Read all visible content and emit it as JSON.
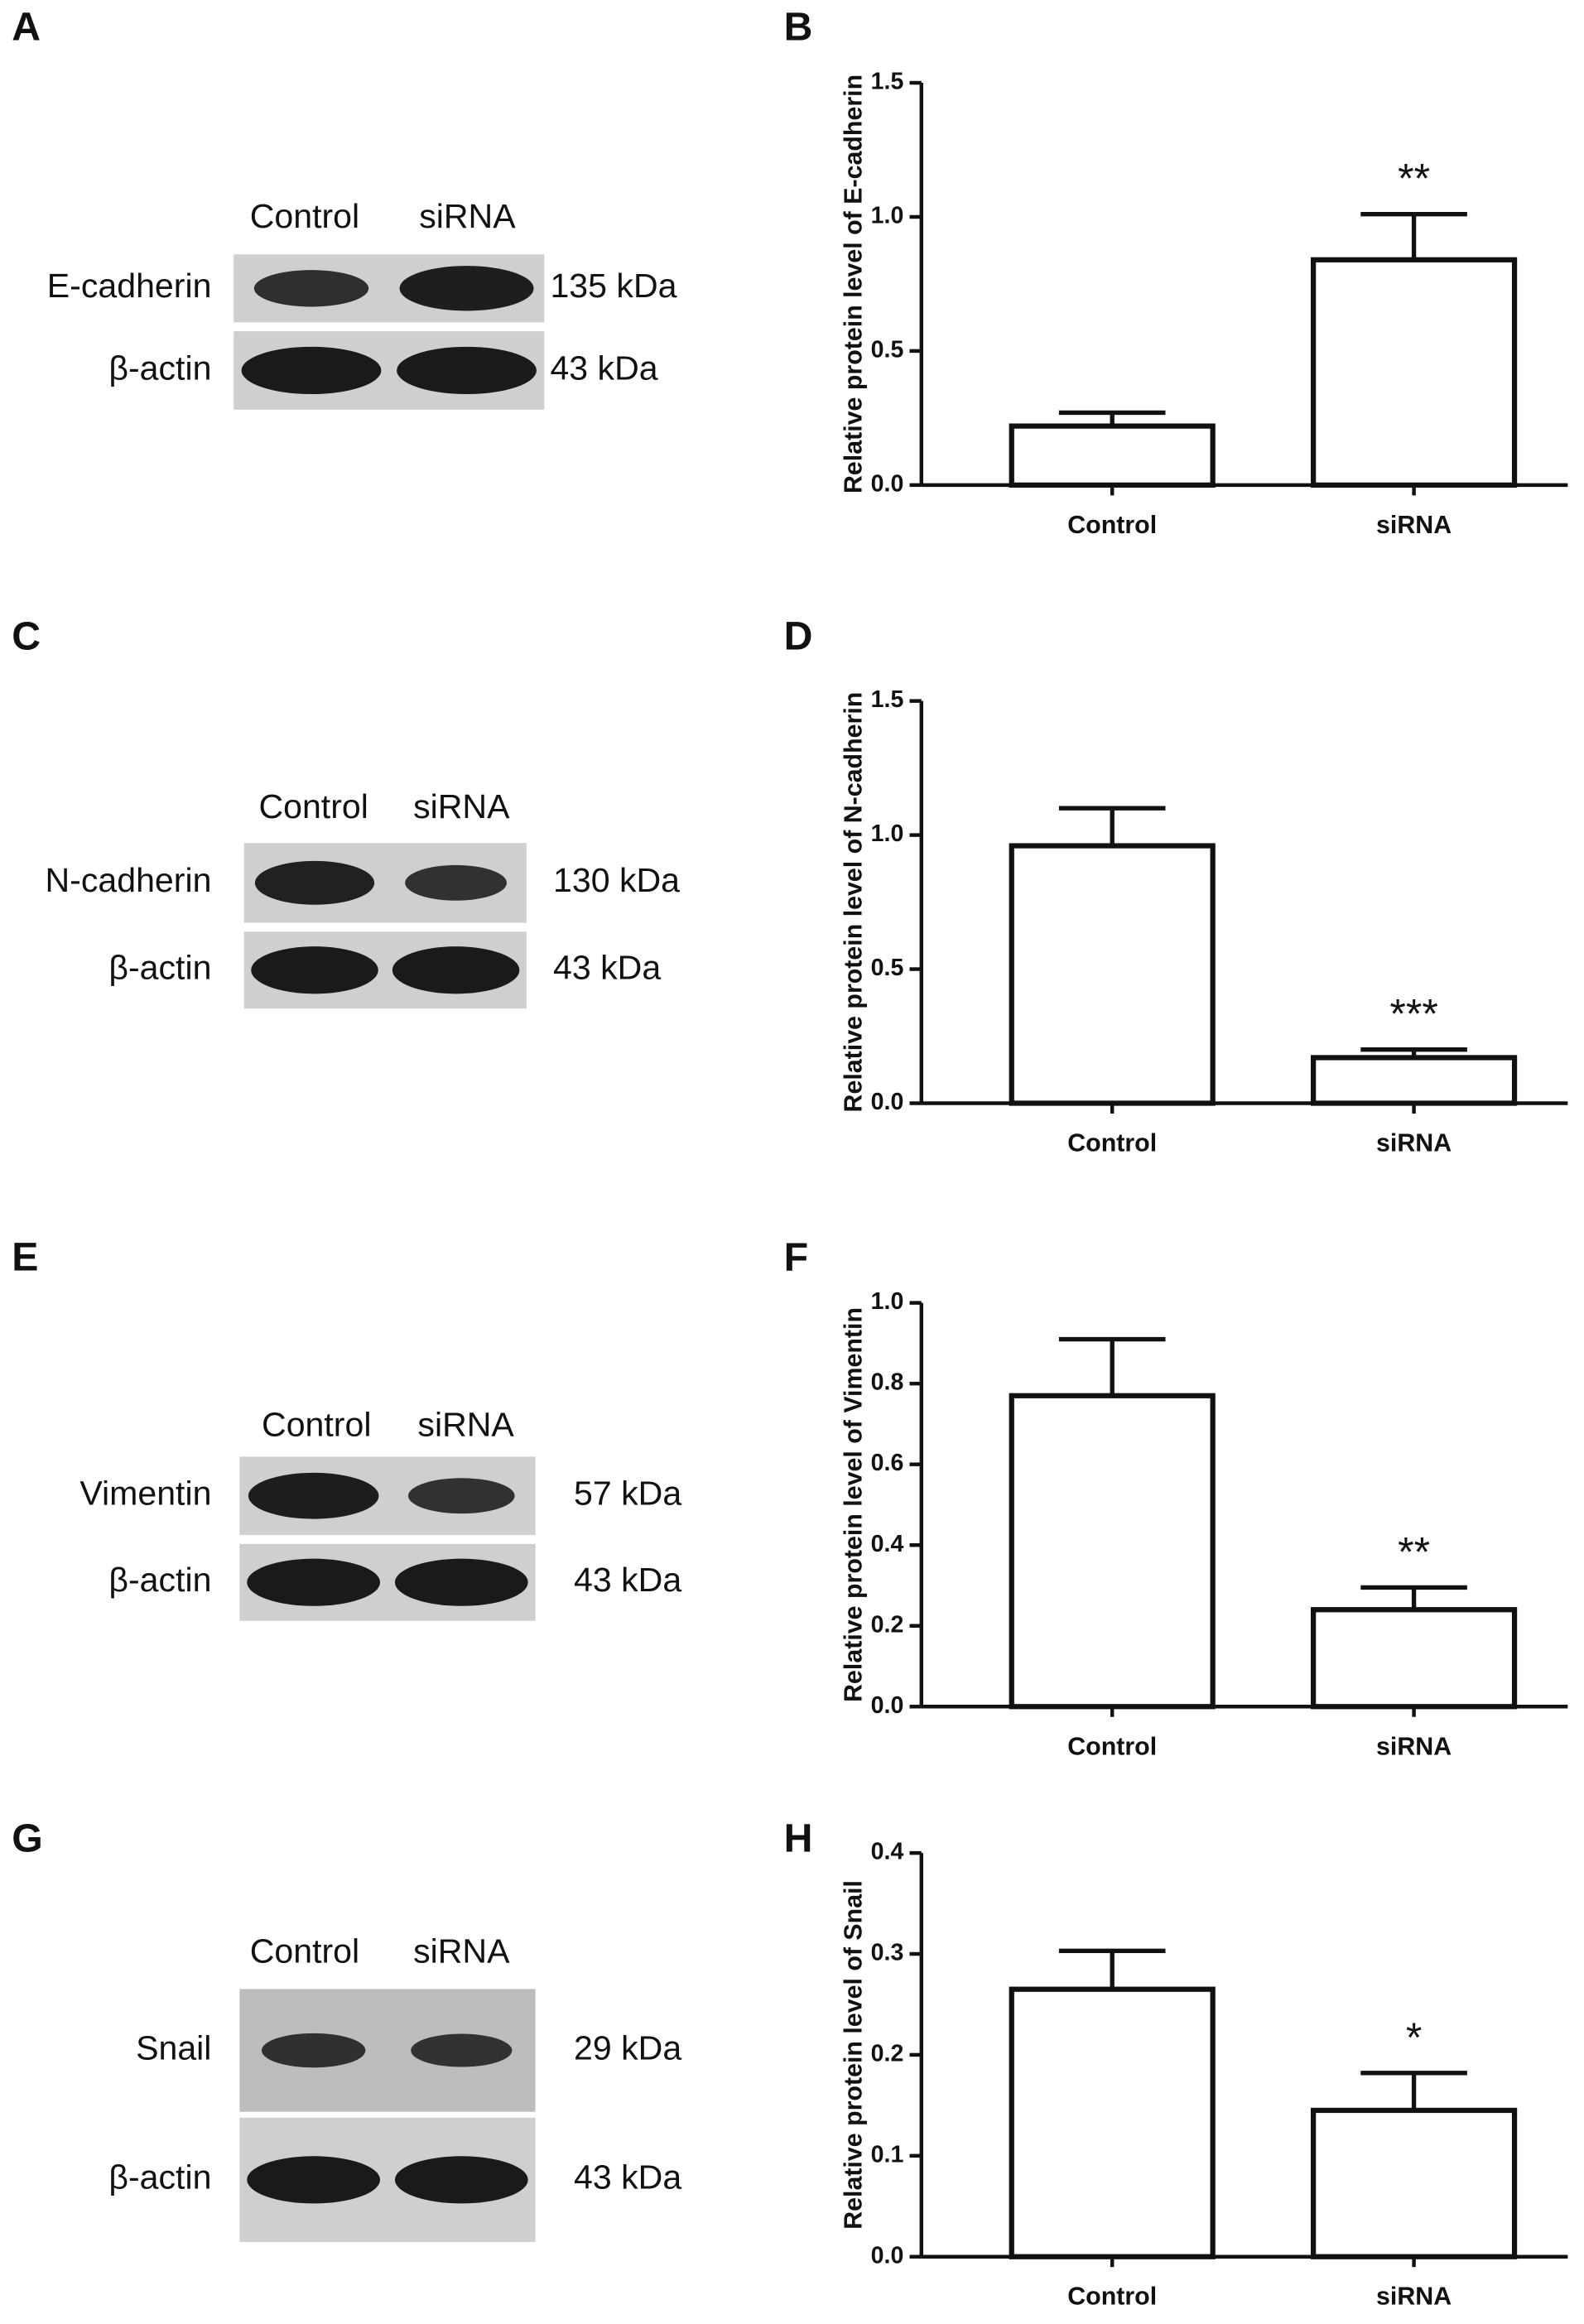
{
  "blots": [
    {
      "panel": "A",
      "lanes": [
        "Control",
        "siRNA"
      ],
      "rows": [
        {
          "protein": "E-cadherin",
          "size": "135 kDa"
        },
        {
          "protein": "β-actin",
          "size": "43 kDa"
        }
      ]
    },
    {
      "panel": "C",
      "lanes": [
        "Control",
        "siRNA"
      ],
      "rows": [
        {
          "protein": "N-cadherin",
          "size": "130 kDa"
        },
        {
          "protein": "β-actin",
          "size": "43 kDa"
        }
      ]
    },
    {
      "panel": "E",
      "lanes": [
        "Control",
        "siRNA"
      ],
      "rows": [
        {
          "protein": "Vimentin",
          "size": "57 kDa"
        },
        {
          "protein": "β-actin",
          "size": "43 kDa"
        }
      ]
    },
    {
      "panel": "G",
      "lanes": [
        "Control",
        "siRNA"
      ],
      "rows": [
        {
          "protein": "Snail",
          "size": "29 kDa"
        },
        {
          "protein": "β-actin",
          "size": "43 kDa"
        }
      ]
    }
  ],
  "chart_data": [
    {
      "type": "bar",
      "panel": "B",
      "y_label": "Relative protein level of E-cadherin",
      "categories": [
        "Control",
        "siRNA"
      ],
      "values": [
        0.22,
        0.84
      ],
      "errors": [
        0.05,
        0.17
      ],
      "significance": {
        "index": 1,
        "label": "**"
      },
      "color": "#ffffff",
      "ylim": [
        0,
        1.5
      ],
      "yticks": [
        {
          "value": 0,
          "label": "0.0"
        },
        0.5,
        {
          "value": 1,
          "label": "1.0"
        },
        1.5
      ]
    },
    {
      "type": "bar",
      "panel": "D",
      "y_label": "Relative protein level of N-cadherin",
      "categories": [
        "Control",
        "siRNA"
      ],
      "values": [
        0.96,
        0.17
      ],
      "errors": [
        0.14,
        0.03
      ],
      "significance": {
        "index": 1,
        "label": "***"
      },
      "color": "#ffffff",
      "ylim": [
        0,
        1.5
      ],
      "yticks": [
        {
          "value": 0,
          "label": "0.0"
        },
        0.5,
        {
          "value": 1,
          "label": "1.0"
        },
        1.5
      ]
    },
    {
      "type": "bar",
      "panel": "F",
      "y_label": "Relative protein level of Vimentin",
      "categories": [
        "Control",
        "siRNA"
      ],
      "values": [
        0.77,
        0.24
      ],
      "errors": [
        0.14,
        0.055
      ],
      "significance": {
        "index": 1,
        "label": "**"
      },
      "color": "#ffffff",
      "ylim": [
        0,
        1
      ],
      "yticks": [
        {
          "value": 0,
          "label": "0.0"
        },
        0.2,
        0.4,
        0.6,
        0.8,
        {
          "value": 1,
          "label": "1.0"
        }
      ]
    },
    {
      "type": "bar",
      "panel": "H",
      "y_label": "Relative protein level of Snail",
      "categories": [
        "Control",
        "siRNA"
      ],
      "values": [
        0.265,
        0.145
      ],
      "errors": [
        0.038,
        0.037
      ],
      "significance": {
        "index": 1,
        "label": "*"
      },
      "color": "#ffffff",
      "ylim": [
        0,
        0.4
      ],
      "yticks": [
        {
          "value": 0,
          "label": "0.0"
        },
        0.1,
        0.2,
        0.3,
        0.4
      ]
    }
  ]
}
